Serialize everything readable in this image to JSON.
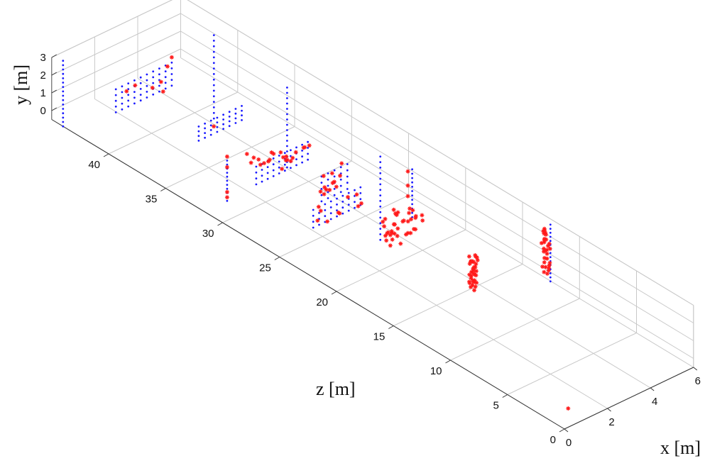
{
  "chart_data": {
    "type": "scatter",
    "title": "",
    "xlabel": "x [m]",
    "ylabel": "y [m]",
    "zlabel": "z [m]",
    "xlim": [
      0,
      6
    ],
    "ylim": [
      -0.5,
      3
    ],
    "zlim": [
      0,
      45
    ],
    "x_ticks": [
      "0",
      "2",
      "4",
      "6"
    ],
    "y_ticks": [
      "0",
      "1",
      "2",
      "3"
    ],
    "z_ticks": [
      "0",
      "5",
      "10",
      "15",
      "20",
      "25",
      "30",
      "35",
      "40"
    ],
    "grid": true,
    "series": [
      {
        "color": "#1a1aff",
        "marker": "dot",
        "groups": [
          {
            "kind": "vline",
            "x": 0,
            "z": 44,
            "y0": -0.5,
            "y1": 3.2,
            "n": 16
          },
          {
            "kind": "vline",
            "x": 4.1,
            "z": 38.5,
            "y0": -0.3,
            "y1": 4.4,
            "n": 16
          },
          {
            "kind": "grid",
            "x0": 0.6,
            "x1": 3.2,
            "y0": 1.3,
            "y1": 2.6,
            "z": 40.5,
            "nx": 10,
            "ny": 5
          },
          {
            "kind": "grid",
            "x0": 2.6,
            "x1": 4.6,
            "y0": -0.1,
            "y1": 0.7,
            "z": 37,
            "nx": 8,
            "ny": 4
          },
          {
            "kind": "vline",
            "x": 0.9,
            "z": 31.3,
            "y0": -0.3,
            "y1": 2.2,
            "n": 12
          },
          {
            "kind": "vline",
            "x": 3.9,
            "z": 31.7,
            "y0": -0.3,
            "y1": 4.2,
            "n": 16
          },
          {
            "kind": "grid",
            "x0": 1.3,
            "x1": 3.7,
            "y0": 1.1,
            "y1": 2.1,
            "z": 29.5,
            "nx": 10,
            "ny": 4
          },
          {
            "kind": "grid",
            "x0": 2.8,
            "x1": 4.0,
            "y0": 0.4,
            "y1": 1.8,
            "z": 26.6,
            "nx": 5,
            "ny": 5
          },
          {
            "kind": "grid",
            "x0": 1.3,
            "x1": 3.5,
            "y0": 0.6,
            "y1": 1.6,
            "z": 24.5,
            "nx": 9,
            "ny": 4
          },
          {
            "kind": "vline",
            "x": 3.2,
            "z": 22.2,
            "y0": -0.3,
            "y1": 4.4,
            "n": 16
          },
          {
            "kind": "vline",
            "x": 5.0,
            "z": 22.8,
            "y0": -0.3,
            "y1": 2.4,
            "n": 12
          },
          {
            "kind": "vline",
            "x": 5.6,
            "z": 11.8,
            "y0": 0.0,
            "y1": 3.2,
            "n": 15
          },
          {
            "kind": "point",
            "x": 0.6,
            "y": 0.0,
            "z": 0.8
          }
        ]
      },
      {
        "color": "#ff1a1a",
        "marker": "star",
        "groups": [
          {
            "kind": "points",
            "pts": [
              [
                3.2,
                2.9,
                40.5
              ],
              [
                3.0,
                2.5,
                40.5
              ],
              [
                2.3,
                1.7,
                40.5
              ],
              [
                2.7,
                1.8,
                40.5
              ],
              [
                2.8,
                1.2,
                40.5
              ],
              [
                1.5,
                2.3,
                40.5
              ],
              [
                1.1,
                2.2,
                40.5
              ],
              [
                3.3,
                0.3,
                37.0
              ]
            ]
          },
          {
            "kind": "points",
            "pts": [
              [
                0.9,
                2.2,
                31.3
              ],
              [
                0.9,
                1.6,
                31.3
              ],
              [
                0.9,
                0.2,
                31.3
              ],
              [
                0.9,
                -0.1,
                31.3
              ]
            ]
          },
          {
            "kind": "cluster",
            "x0": 1.3,
            "x1": 3.9,
            "y0": 1.2,
            "y1": 2.4,
            "z": 30.0,
            "n": 22
          },
          {
            "kind": "cluster",
            "x0": 2.8,
            "x1": 4.0,
            "y0": 0.4,
            "y1": 1.8,
            "z": 26.6,
            "n": 12
          },
          {
            "kind": "cluster",
            "x0": 1.3,
            "x1": 3.4,
            "y0": 0.9,
            "y1": 1.8,
            "z": 24.4,
            "n": 10
          },
          {
            "kind": "cluster",
            "x0": 2.7,
            "x1": 4.3,
            "y0": 0.1,
            "y1": 1.6,
            "z": 21.0,
            "n": 38
          },
          {
            "kind": "points",
            "pts": [
              [
                4.8,
                2.4,
                22.8
              ],
              [
                4.8,
                1.6,
                22.8
              ],
              [
                4.8,
                1.0,
                22.8
              ]
            ]
          },
          {
            "kind": "column",
            "x": 3.3,
            "z": 14.2,
            "y0": 0.0,
            "y1": 1.9,
            "n": 34
          },
          {
            "kind": "column",
            "x": 5.4,
            "z": 11.8,
            "y0": 0.6,
            "y1": 3.2,
            "n": 30
          },
          {
            "kind": "point",
            "x": 0.6,
            "y": 0.0,
            "z": 0.8
          }
        ]
      }
    ]
  }
}
